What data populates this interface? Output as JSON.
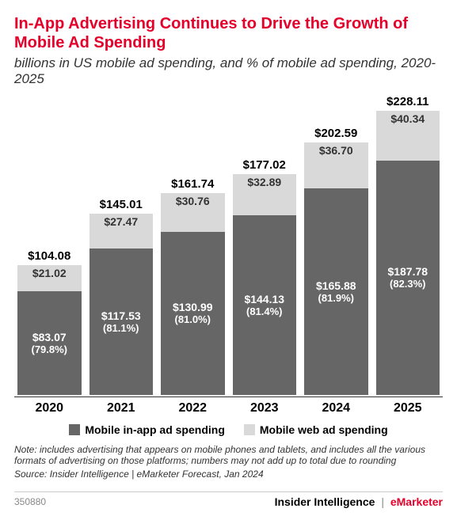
{
  "title": {
    "text": "In-App Advertising Continues to Drive the Growth of Mobile Ad Spending",
    "color": "#e4002b",
    "fontsize": 20
  },
  "subtitle": {
    "text": "billions in US mobile ad spending, and % of mobile ad spending, 2020-2025",
    "color": "#333333",
    "fontsize": 17
  },
  "chart": {
    "type": "stacked-bar",
    "max_value": 235,
    "categories": [
      "2020",
      "2021",
      "2022",
      "2023",
      "2024",
      "2025"
    ],
    "x_tick_fontsize": 16,
    "total_label_fontsize": 15,
    "total_label_color": "#000000",
    "series": [
      {
        "name": "Mobile in-app ad spending",
        "color": "#666666",
        "text_color": "#ffffff",
        "value_fontsize": 14,
        "pct_fontsize": 13,
        "data": [
          {
            "value": 83.07,
            "label": "$83.07",
            "pct": "(79.8%)"
          },
          {
            "value": 117.53,
            "label": "$117.53",
            "pct": "(81.1%)"
          },
          {
            "value": 130.99,
            "label": "$130.99",
            "pct": "(81.0%)"
          },
          {
            "value": 144.13,
            "label": "$144.13",
            "pct": "(81.4%)"
          },
          {
            "value": 165.88,
            "label": "$165.88",
            "pct": "(81.9%)"
          },
          {
            "value": 187.78,
            "label": "$187.78",
            "pct": "(82.3%)"
          }
        ]
      },
      {
        "name": "Mobile web ad spending",
        "color": "#d9d9d9",
        "text_color": "#333333",
        "value_fontsize": 14,
        "data": [
          {
            "value": 21.02,
            "label": "$21.02"
          },
          {
            "value": 27.47,
            "label": "$27.47"
          },
          {
            "value": 30.76,
            "label": "$30.76"
          },
          {
            "value": 32.89,
            "label": "$32.89"
          },
          {
            "value": 36.7,
            "label": "$36.70"
          },
          {
            "value": 40.34,
            "label": "$40.34"
          }
        ]
      }
    ],
    "totals": [
      "$104.08",
      "$145.01",
      "$161.74",
      "$177.02",
      "$202.59",
      "$228.11"
    ]
  },
  "legend": {
    "fontsize": 14,
    "items": [
      {
        "swatch": "#666666",
        "label": "Mobile in-app ad spending"
      },
      {
        "swatch": "#d9d9d9",
        "label": "Mobile web ad spending"
      }
    ]
  },
  "note": {
    "text": "Note: includes advertising that appears on mobile phones and tablets, and includes all the various formats of advertising on those platforms; numbers may not add up to total due to rounding",
    "fontsize": 12,
    "color": "#333333"
  },
  "source": {
    "text": "Source: Insider Intelligence | eMarketer Forecast, Jan 2024",
    "fontsize": 12,
    "color": "#333333"
  },
  "footer": {
    "doc_id": "350880",
    "doc_id_fontsize": 12,
    "brand_left": "Insider Intelligence",
    "brand_right": "eMarketer",
    "brand_fontsize": 14,
    "brand_left_color": "#000000",
    "brand_right_color": "#e4002b"
  }
}
